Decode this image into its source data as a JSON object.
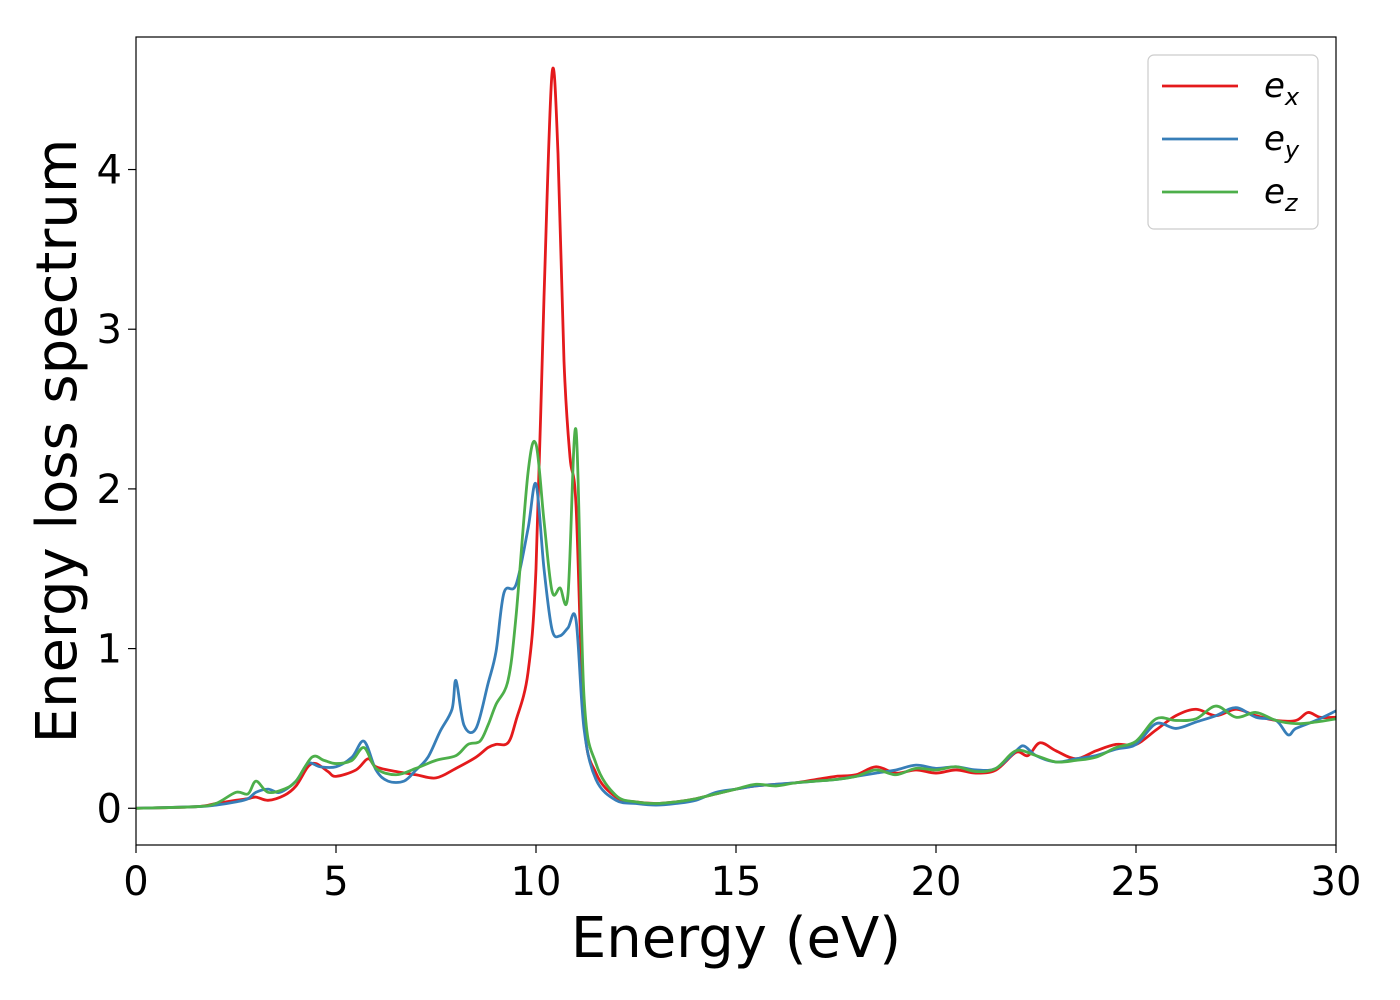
{
  "chart_data": {
    "type": "line",
    "title": "",
    "xlabel": "Energy (eV)",
    "ylabel": "Energy loss spectrum",
    "xlim": [
      0,
      30
    ],
    "ylim": [
      -0.23,
      4.83
    ],
    "xticks": [
      0,
      5,
      10,
      15,
      20,
      25,
      30
    ],
    "yticks": [
      0,
      1,
      2,
      3,
      4
    ],
    "grid": false,
    "legend_position": "top-right",
    "series": [
      {
        "name": "e_x",
        "legend_base": "e",
        "legend_sub": "x",
        "color": "#e41a1c",
        "points": [
          [
            0,
            0
          ],
          [
            1.5,
            0.01
          ],
          [
            2.0,
            0.03
          ],
          [
            2.5,
            0.05
          ],
          [
            2.8,
            0.06
          ],
          [
            3.0,
            0.07
          ],
          [
            3.3,
            0.05
          ],
          [
            3.7,
            0.08
          ],
          [
            4.0,
            0.14
          ],
          [
            4.3,
            0.26
          ],
          [
            4.5,
            0.28
          ],
          [
            4.8,
            0.23
          ],
          [
            5.0,
            0.2
          ],
          [
            5.5,
            0.24
          ],
          [
            5.8,
            0.31
          ],
          [
            6.0,
            0.26
          ],
          [
            6.5,
            0.23
          ],
          [
            7.0,
            0.21
          ],
          [
            7.5,
            0.19
          ],
          [
            8.0,
            0.25
          ],
          [
            8.5,
            0.32
          ],
          [
            8.8,
            0.38
          ],
          [
            9.0,
            0.4
          ],
          [
            9.3,
            0.41
          ],
          [
            9.5,
            0.55
          ],
          [
            9.8,
            0.85
          ],
          [
            10.0,
            1.5
          ],
          [
            10.2,
            3.2
          ],
          [
            10.4,
            4.6
          ],
          [
            10.55,
            4.1
          ],
          [
            10.7,
            2.8
          ],
          [
            10.85,
            2.2
          ],
          [
            11.0,
            1.9
          ],
          [
            11.2,
            0.55
          ],
          [
            11.5,
            0.22
          ],
          [
            12.0,
            0.07
          ],
          [
            12.5,
            0.04
          ],
          [
            13.0,
            0.03
          ],
          [
            13.5,
            0.04
          ],
          [
            14.0,
            0.06
          ],
          [
            14.5,
            0.09
          ],
          [
            15.0,
            0.12
          ],
          [
            15.5,
            0.14
          ],
          [
            16.0,
            0.15
          ],
          [
            16.5,
            0.16
          ],
          [
            17.0,
            0.18
          ],
          [
            17.5,
            0.2
          ],
          [
            18.0,
            0.21
          ],
          [
            18.5,
            0.26
          ],
          [
            19.0,
            0.22
          ],
          [
            19.5,
            0.24
          ],
          [
            20.0,
            0.22
          ],
          [
            20.5,
            0.24
          ],
          [
            21.0,
            0.22
          ],
          [
            21.5,
            0.24
          ],
          [
            22.0,
            0.35
          ],
          [
            22.3,
            0.33
          ],
          [
            22.6,
            0.41
          ],
          [
            23.0,
            0.36
          ],
          [
            23.5,
            0.31
          ],
          [
            24.0,
            0.36
          ],
          [
            24.5,
            0.4
          ],
          [
            25.0,
            0.4
          ],
          [
            25.5,
            0.49
          ],
          [
            26.0,
            0.58
          ],
          [
            26.5,
            0.62
          ],
          [
            27.0,
            0.58
          ],
          [
            27.5,
            0.62
          ],
          [
            28.0,
            0.58
          ],
          [
            28.5,
            0.55
          ],
          [
            29.0,
            0.55
          ],
          [
            29.3,
            0.6
          ],
          [
            29.6,
            0.57
          ],
          [
            30.0,
            0.57
          ]
        ]
      },
      {
        "name": "e_y",
        "legend_base": "e",
        "legend_sub": "y",
        "color": "#377eb8",
        "points": [
          [
            0,
            0
          ],
          [
            1.5,
            0.01
          ],
          [
            2.0,
            0.02
          ],
          [
            2.5,
            0.04
          ],
          [
            2.8,
            0.06
          ],
          [
            3.0,
            0.1
          ],
          [
            3.3,
            0.12
          ],
          [
            3.6,
            0.1
          ],
          [
            4.0,
            0.17
          ],
          [
            4.3,
            0.28
          ],
          [
            4.6,
            0.26
          ],
          [
            5.0,
            0.26
          ],
          [
            5.4,
            0.32
          ],
          [
            5.7,
            0.42
          ],
          [
            6.0,
            0.24
          ],
          [
            6.3,
            0.17
          ],
          [
            6.7,
            0.17
          ],
          [
            7.0,
            0.24
          ],
          [
            7.3,
            0.32
          ],
          [
            7.6,
            0.48
          ],
          [
            7.9,
            0.62
          ],
          [
            8.0,
            0.8
          ],
          [
            8.2,
            0.52
          ],
          [
            8.5,
            0.5
          ],
          [
            8.8,
            0.78
          ],
          [
            9.0,
            0.98
          ],
          [
            9.2,
            1.35
          ],
          [
            9.5,
            1.4
          ],
          [
            9.8,
            1.75
          ],
          [
            10.0,
            2.03
          ],
          [
            10.2,
            1.5
          ],
          [
            10.4,
            1.12
          ],
          [
            10.6,
            1.08
          ],
          [
            10.8,
            1.13
          ],
          [
            11.0,
            1.18
          ],
          [
            11.2,
            0.5
          ],
          [
            11.5,
            0.18
          ],
          [
            12.0,
            0.05
          ],
          [
            12.5,
            0.03
          ],
          [
            13.0,
            0.02
          ],
          [
            13.5,
            0.03
          ],
          [
            14.0,
            0.05
          ],
          [
            14.5,
            0.1
          ],
          [
            15.0,
            0.12
          ],
          [
            15.5,
            0.14
          ],
          [
            16.0,
            0.15
          ],
          [
            16.5,
            0.16
          ],
          [
            17.0,
            0.17
          ],
          [
            17.5,
            0.18
          ],
          [
            18.0,
            0.2
          ],
          [
            18.5,
            0.22
          ],
          [
            19.0,
            0.24
          ],
          [
            19.5,
            0.27
          ],
          [
            20.0,
            0.25
          ],
          [
            20.5,
            0.26
          ],
          [
            21.0,
            0.24
          ],
          [
            21.5,
            0.25
          ],
          [
            22.0,
            0.36
          ],
          [
            22.2,
            0.39
          ],
          [
            22.5,
            0.33
          ],
          [
            23.0,
            0.29
          ],
          [
            23.5,
            0.31
          ],
          [
            24.0,
            0.33
          ],
          [
            24.5,
            0.37
          ],
          [
            25.0,
            0.4
          ],
          [
            25.5,
            0.53
          ],
          [
            26.0,
            0.5
          ],
          [
            26.5,
            0.54
          ],
          [
            27.0,
            0.58
          ],
          [
            27.5,
            0.63
          ],
          [
            28.0,
            0.57
          ],
          [
            28.5,
            0.55
          ],
          [
            28.8,
            0.46
          ],
          [
            29.0,
            0.5
          ],
          [
            29.5,
            0.55
          ],
          [
            30.0,
            0.61
          ]
        ]
      },
      {
        "name": "e_z",
        "legend_base": "e",
        "legend_sub": "z",
        "color": "#4daf4a",
        "points": [
          [
            0,
            0
          ],
          [
            1.5,
            0.01
          ],
          [
            2.0,
            0.03
          ],
          [
            2.5,
            0.1
          ],
          [
            2.8,
            0.09
          ],
          [
            3.0,
            0.17
          ],
          [
            3.3,
            0.1
          ],
          [
            3.7,
            0.12
          ],
          [
            4.0,
            0.17
          ],
          [
            4.4,
            0.32
          ],
          [
            4.7,
            0.3
          ],
          [
            5.0,
            0.28
          ],
          [
            5.4,
            0.3
          ],
          [
            5.7,
            0.38
          ],
          [
            6.0,
            0.25
          ],
          [
            6.5,
            0.21
          ],
          [
            7.0,
            0.25
          ],
          [
            7.5,
            0.3
          ],
          [
            8.0,
            0.33
          ],
          [
            8.3,
            0.4
          ],
          [
            8.6,
            0.42
          ],
          [
            8.8,
            0.52
          ],
          [
            9.0,
            0.65
          ],
          [
            9.3,
            0.8
          ],
          [
            9.5,
            1.2
          ],
          [
            9.8,
            2.1
          ],
          [
            10.0,
            2.28
          ],
          [
            10.2,
            1.8
          ],
          [
            10.4,
            1.36
          ],
          [
            10.6,
            1.38
          ],
          [
            10.8,
            1.34
          ],
          [
            11.0,
            2.37
          ],
          [
            11.2,
            0.7
          ],
          [
            11.5,
            0.28
          ],
          [
            12.0,
            0.08
          ],
          [
            12.5,
            0.04
          ],
          [
            13.0,
            0.03
          ],
          [
            13.5,
            0.04
          ],
          [
            14.0,
            0.06
          ],
          [
            14.5,
            0.09
          ],
          [
            15.0,
            0.12
          ],
          [
            15.5,
            0.15
          ],
          [
            16.0,
            0.14
          ],
          [
            16.5,
            0.16
          ],
          [
            17.0,
            0.17
          ],
          [
            17.5,
            0.18
          ],
          [
            18.0,
            0.2
          ],
          [
            18.5,
            0.24
          ],
          [
            19.0,
            0.21
          ],
          [
            19.5,
            0.25
          ],
          [
            20.0,
            0.24
          ],
          [
            20.5,
            0.26
          ],
          [
            21.0,
            0.23
          ],
          [
            21.5,
            0.25
          ],
          [
            22.0,
            0.36
          ],
          [
            22.5,
            0.33
          ],
          [
            23.0,
            0.29
          ],
          [
            23.5,
            0.3
          ],
          [
            24.0,
            0.32
          ],
          [
            24.5,
            0.38
          ],
          [
            25.0,
            0.42
          ],
          [
            25.5,
            0.56
          ],
          [
            26.0,
            0.55
          ],
          [
            26.5,
            0.56
          ],
          [
            27.0,
            0.64
          ],
          [
            27.5,
            0.57
          ],
          [
            28.0,
            0.6
          ],
          [
            28.5,
            0.55
          ],
          [
            29.0,
            0.53
          ],
          [
            29.5,
            0.54
          ],
          [
            30.0,
            0.56
          ]
        ]
      }
    ]
  }
}
